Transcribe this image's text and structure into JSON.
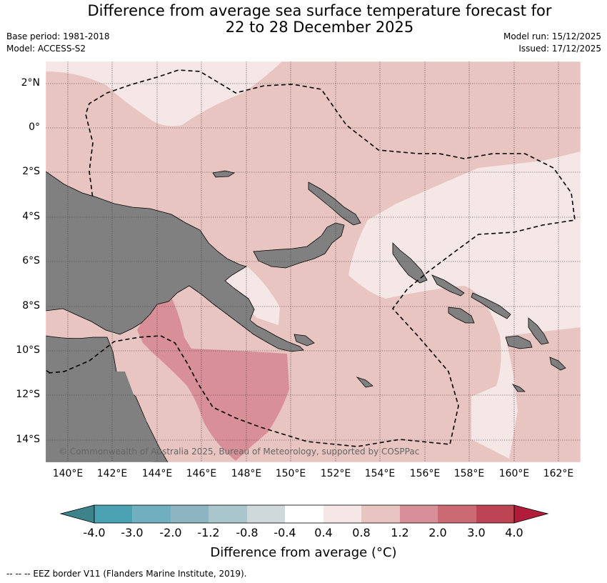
{
  "title_line1": "Difference from average sea surface temperature forecast for",
  "title_line2": "22 to 28 December 2025",
  "base_period": "Base period: 1981-2018",
  "model": "Model: ACCESS-S2",
  "model_run": "Model run: 15/12/2025",
  "issued": "Issued: 17/12/2025",
  "copyright": "© Commonwealth of Australia 2025, Bureau of Meteorology, supported by COSPPac",
  "footnote": "--  --  -- EEZ border V11 (Flanders Marine Institute, 2019).",
  "lat_labels": [
    "2°N",
    "0°",
    "2°S",
    "4°S",
    "6°S",
    "8°S",
    "10°S",
    "12°S",
    "14°S"
  ],
  "lon_labels": [
    "140°E",
    "142°E",
    "144°E",
    "146°E",
    "148°E",
    "150°E",
    "152°E",
    "154°E",
    "156°E",
    "158°E",
    "160°E",
    "162°E"
  ],
  "colorbar": {
    "title": "Difference from average (°C)",
    "ticks": [
      "-4.0",
      "-3.0",
      "-2.0",
      "-1.2",
      "-0.8",
      "-0.4",
      "0.4",
      "0.8",
      "1.2",
      "2.0",
      "3.0",
      "4.0"
    ],
    "colors": [
      "#3e828c",
      "#4aa2b3",
      "#6fafbf",
      "#8db5c1",
      "#a9c6cc",
      "#d0d9da",
      "#ffffff",
      "#f5e7e6",
      "#e9c5c2",
      "#d98f98",
      "#cc6a74",
      "#bd4452",
      "#b01c3a"
    ]
  },
  "map_colors": {
    "land": "#808080",
    "anom_04_08": "#f5e7e6",
    "anom_08_12": "#e9c5c2",
    "anom_12_20": "#d98f98"
  }
}
